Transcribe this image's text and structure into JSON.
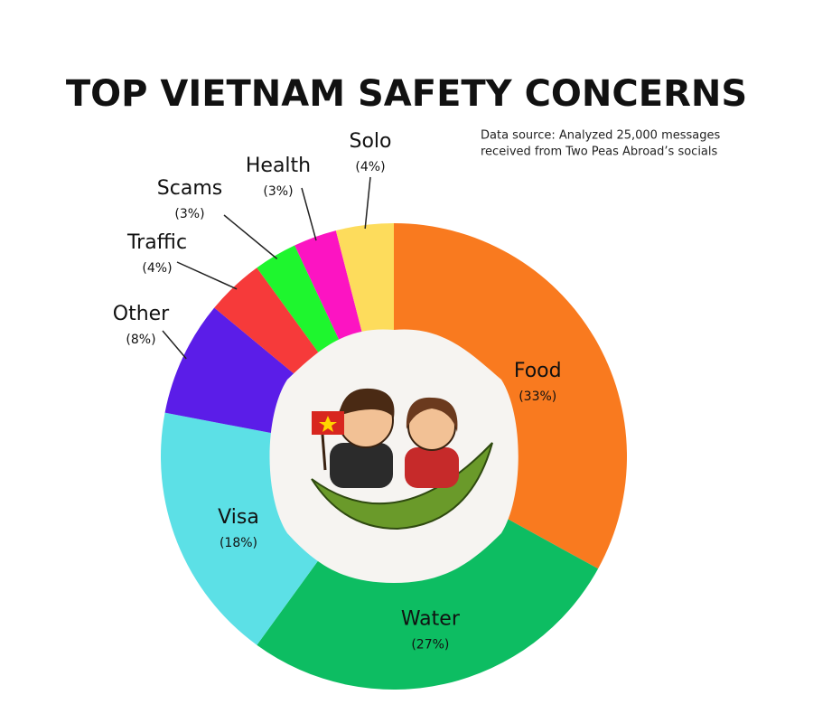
{
  "chart_data": {
    "type": "donut",
    "title": "TOP VIETNAM SAFETY CONCERNS",
    "source": [
      "Data source: Analyzed 25,000 messages",
      "received from Two Peas Abroad’s socials"
    ],
    "categories": [
      "Food",
      "Water",
      "Visa",
      "Other",
      "Traffic",
      "Scams",
      "Health",
      "Solo"
    ],
    "values": [
      33,
      27,
      18,
      8,
      4,
      3,
      3,
      4
    ],
    "value_labels": [
      "(33%)",
      "(27%)",
      "(18%)",
      "(8%)",
      "(4%)",
      "(3%)",
      "(3%)",
      "(4%)"
    ],
    "colors": [
      "#f97a1f",
      "#0dbd62",
      "#5ce0e6",
      "#5b1de8",
      "#f63a3a",
      "#1ef62e",
      "#fc14c2",
      "#fddc5c"
    ]
  }
}
